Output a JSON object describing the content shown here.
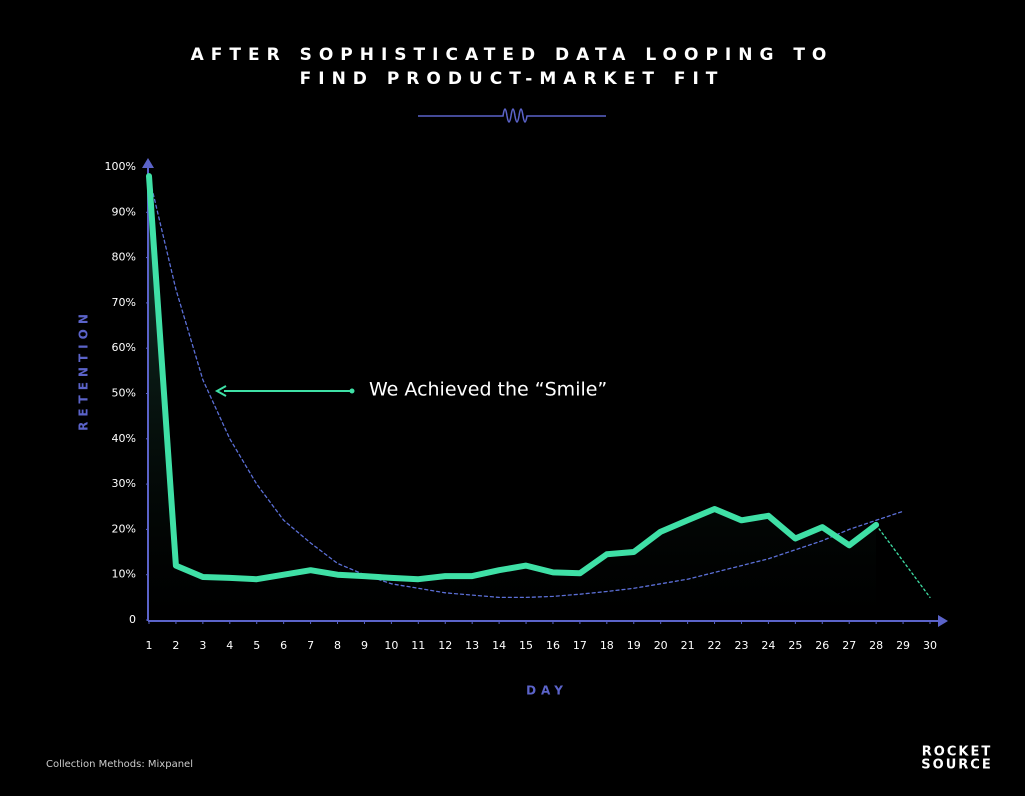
{
  "chart_data": {
    "type": "line",
    "title": [
      "AFTER SOPHISTICATED DATA LOOPING TO",
      "FIND PRODUCT-MARKET FIT"
    ],
    "x_label": "DAY",
    "y_label": "RETENTION",
    "annotation": "We Achieved the “Smile”",
    "footnote": "Collection Methods: Mixpanel",
    "logo": [
      "ROCKET",
      "SOURCE"
    ],
    "x": [
      1,
      2,
      3,
      4,
      5,
      6,
      7,
      8,
      9,
      10,
      11,
      12,
      13,
      14,
      15,
      16,
      17,
      18,
      19,
      20,
      21,
      22,
      23,
      24,
      25,
      26,
      27,
      28,
      29,
      30
    ],
    "xlim": [
      1,
      30
    ],
    "xticks": [
      1,
      2,
      3,
      4,
      5,
      6,
      7,
      8,
      9,
      10,
      11,
      12,
      13,
      14,
      15,
      16,
      17,
      18,
      19,
      20,
      21,
      22,
      23,
      24,
      25,
      26,
      27,
      28,
      29,
      30
    ],
    "ylim": [
      0,
      100
    ],
    "yticks": [
      0,
      {
        "value": 10,
        "label": "10%"
      },
      {
        "value": 20,
        "label": "20%"
      },
      {
        "value": 30,
        "label": "30%"
      },
      {
        "value": 40,
        "label": "40%"
      },
      {
        "value": 50,
        "label": "50%"
      },
      {
        "value": 60,
        "label": "60%"
      },
      {
        "value": 70,
        "label": "70%"
      },
      {
        "value": 80,
        "label": "80%"
      },
      {
        "value": 90,
        "label": "90%"
      },
      {
        "value": 100,
        "label": "100%"
      }
    ],
    "series": [
      {
        "color": "#3fe0a6",
        "style": "solid",
        "area": true,
        "values": [
          98,
          12,
          9.5,
          9.3,
          9,
          10,
          11,
          10,
          9.7,
          9.3,
          9,
          9.7,
          9.7,
          11,
          12,
          10.5,
          10.3,
          14.5,
          15,
          19.5,
          22,
          24.5,
          22,
          23,
          18,
          20.5,
          16.5,
          21,
          null,
          null
        ]
      },
      {
        "color": "#5b6fd6",
        "style": "dashed",
        "area": false,
        "values": [
          98,
          73,
          53,
          40,
          30,
          22,
          17,
          12.5,
          10,
          8,
          7,
          6,
          5.5,
          5,
          5,
          5.2,
          5.7,
          6.3,
          7,
          8,
          9,
          10.5,
          12,
          13.5,
          15.5,
          17.5,
          20,
          22,
          24,
          null
        ]
      },
      {
        "color": "#3fe0a6",
        "style": "dotted",
        "area": false,
        "values": [
          null,
          null,
          null,
          null,
          null,
          null,
          null,
          null,
          null,
          null,
          null,
          null,
          null,
          null,
          null,
          null,
          null,
          null,
          null,
          null,
          null,
          null,
          null,
          null,
          null,
          null,
          null,
          21,
          13,
          5
        ]
      }
    ]
  }
}
